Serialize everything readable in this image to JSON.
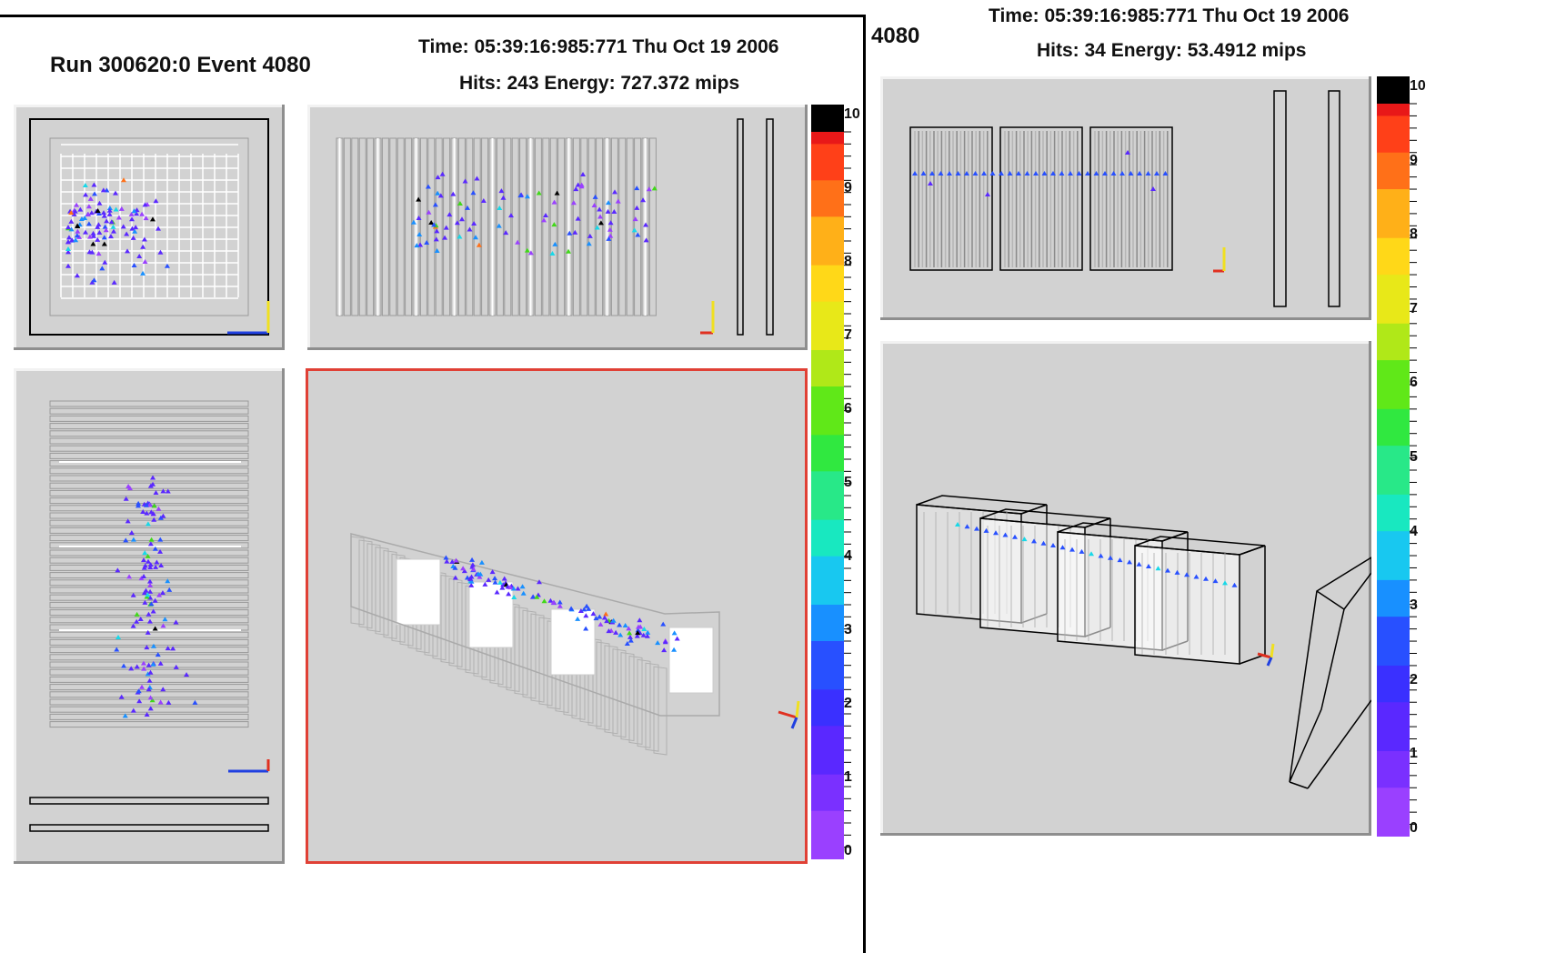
{
  "left": {
    "run_event": "Run 300620:0 Event 4080",
    "time": "Time: 05:39:16:985:771 Thu Oct 19 2006",
    "hits_energy": "Hits: 243  Energy: 727.372 mips",
    "scale_labels": [
      "0",
      "1",
      "2",
      "3",
      "4",
      "5",
      "6",
      "7",
      "8",
      "9",
      "10"
    ]
  },
  "right": {
    "event_id": "4080",
    "time": "Time: 05:39:16:985:771 Thu Oct 19 2006",
    "hits_energy": "Hits: 34  Energy: 53.4912 mips",
    "scale_labels": [
      "0",
      "1",
      "2",
      "3",
      "4",
      "5",
      "6",
      "7",
      "8",
      "9",
      "10"
    ]
  },
  "colors": {
    "panel_bg": "#d2d2d2",
    "selected_border": "#e04035",
    "hit_palette": [
      "#9a40ff",
      "#5a28ff",
      "#2850ff",
      "#1890ff",
      "#18d8e8",
      "#28e888",
      "#40d818",
      "#c8e818",
      "#ffd818",
      "#ff7018",
      "#e81818",
      "#000000"
    ]
  }
}
